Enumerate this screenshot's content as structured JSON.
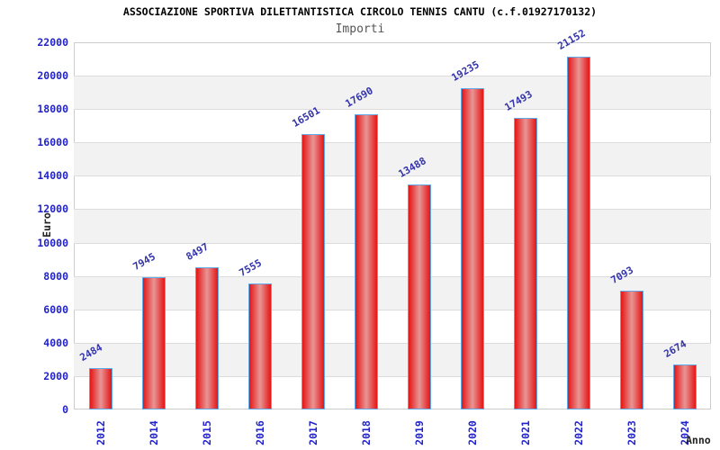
{
  "chart_data": {
    "type": "bar",
    "title": "ASSOCIAZIONE SPORTIVA DILETTANTISTICA CIRCOLO TENNIS CANTU (c.f.01927170132)",
    "subtitle": "Importi",
    "xlabel": "Anno",
    "ylabel": "Euro",
    "categories": [
      "2012",
      "2014",
      "2015",
      "2016",
      "2017",
      "2018",
      "2019",
      "2020",
      "2021",
      "2022",
      "2023",
      "2024"
    ],
    "values": [
      2484,
      7945,
      8497,
      7555,
      16501,
      17690,
      13488,
      19235,
      17493,
      21152,
      7093,
      2674
    ],
    "value_labels": [
      "2484",
      "7945",
      "8497",
      "7555",
      "16501",
      "17690",
      "13488",
      "19235",
      "17493",
      "21152",
      "7093",
      "2674"
    ],
    "ylim": [
      0,
      22000
    ],
    "ytick_step": 2000,
    "y_ticks": [
      "0",
      "2000",
      "4000",
      "6000",
      "8000",
      "10000",
      "12000",
      "14000",
      "16000",
      "18000",
      "20000",
      "22000"
    ],
    "legend": "none",
    "grid": "horizontal gridlines every 2000 with alternating light-gray bands",
    "colors": {
      "background": "#ffffff",
      "title": "#000000",
      "subtitle": "#555555",
      "plot_border": "#cccccc",
      "band": "#f2f2f2",
      "gridline": "#dcdcdc",
      "bar_fill_edge": "#e51515",
      "bar_fill_center": "#e89595",
      "bar_border": "#5ea9e9",
      "tick_label": "#2323cc",
      "value_label": "#3434aa",
      "axis_title": "#222222"
    }
  }
}
